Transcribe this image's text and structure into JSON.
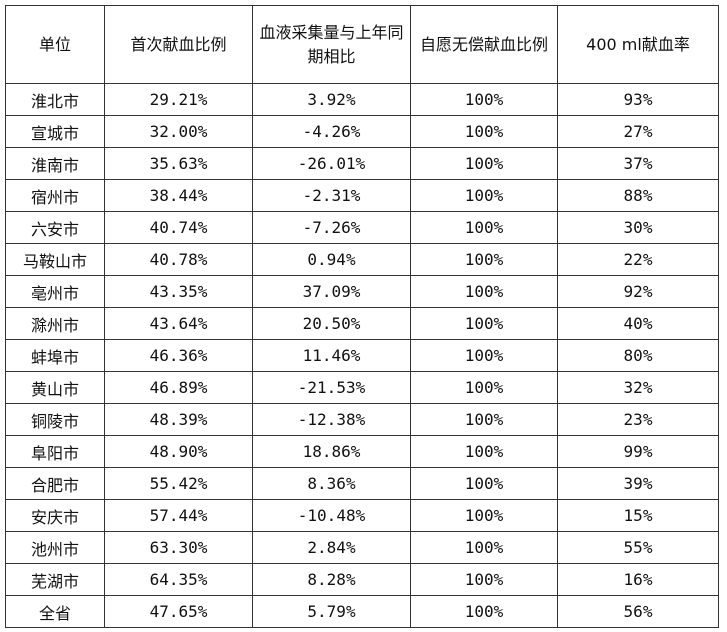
{
  "table": {
    "headers": [
      "单位",
      "首次献血比例",
      "血液采集量与上年同期相比",
      "自愿无偿献血比例",
      "400 ml献血率"
    ],
    "rows": [
      [
        "淮北市",
        "29.21%",
        "3.92%",
        "100%",
        "93%"
      ],
      [
        "宣城市",
        "32.00%",
        "-4.26%",
        "100%",
        "27%"
      ],
      [
        "淮南市",
        "35.63%",
        "-26.01%",
        "100%",
        "37%"
      ],
      [
        "宿州市",
        "38.44%",
        "-2.31%",
        "100%",
        "88%"
      ],
      [
        "六安市",
        "40.74%",
        "-7.26%",
        "100%",
        "30%"
      ],
      [
        "马鞍山市",
        "40.78%",
        "0.94%",
        "100%",
        "22%"
      ],
      [
        "亳州市",
        "43.35%",
        "37.09%",
        "100%",
        "92%"
      ],
      [
        "滁州市",
        "43.64%",
        "20.50%",
        "100%",
        "40%"
      ],
      [
        "蚌埠市",
        "46.36%",
        "11.46%",
        "100%",
        "80%"
      ],
      [
        "黄山市",
        "46.89%",
        "-21.53%",
        "100%",
        "32%"
      ],
      [
        "铜陵市",
        "48.39%",
        "-12.38%",
        "100%",
        "23%"
      ],
      [
        "阜阳市",
        "48.90%",
        "18.86%",
        "100%",
        "99%"
      ],
      [
        "合肥市",
        "55.42%",
        "8.36%",
        "100%",
        "39%"
      ],
      [
        "安庆市",
        "57.44%",
        "-10.48%",
        "100%",
        "15%"
      ],
      [
        "池州市",
        "63.30%",
        "2.84%",
        "100%",
        "55%"
      ],
      [
        "芜湖市",
        "64.35%",
        "8.28%",
        "100%",
        "16%"
      ],
      [
        "全省",
        "47.65%",
        "5.79%",
        "100%",
        "56%"
      ]
    ]
  }
}
